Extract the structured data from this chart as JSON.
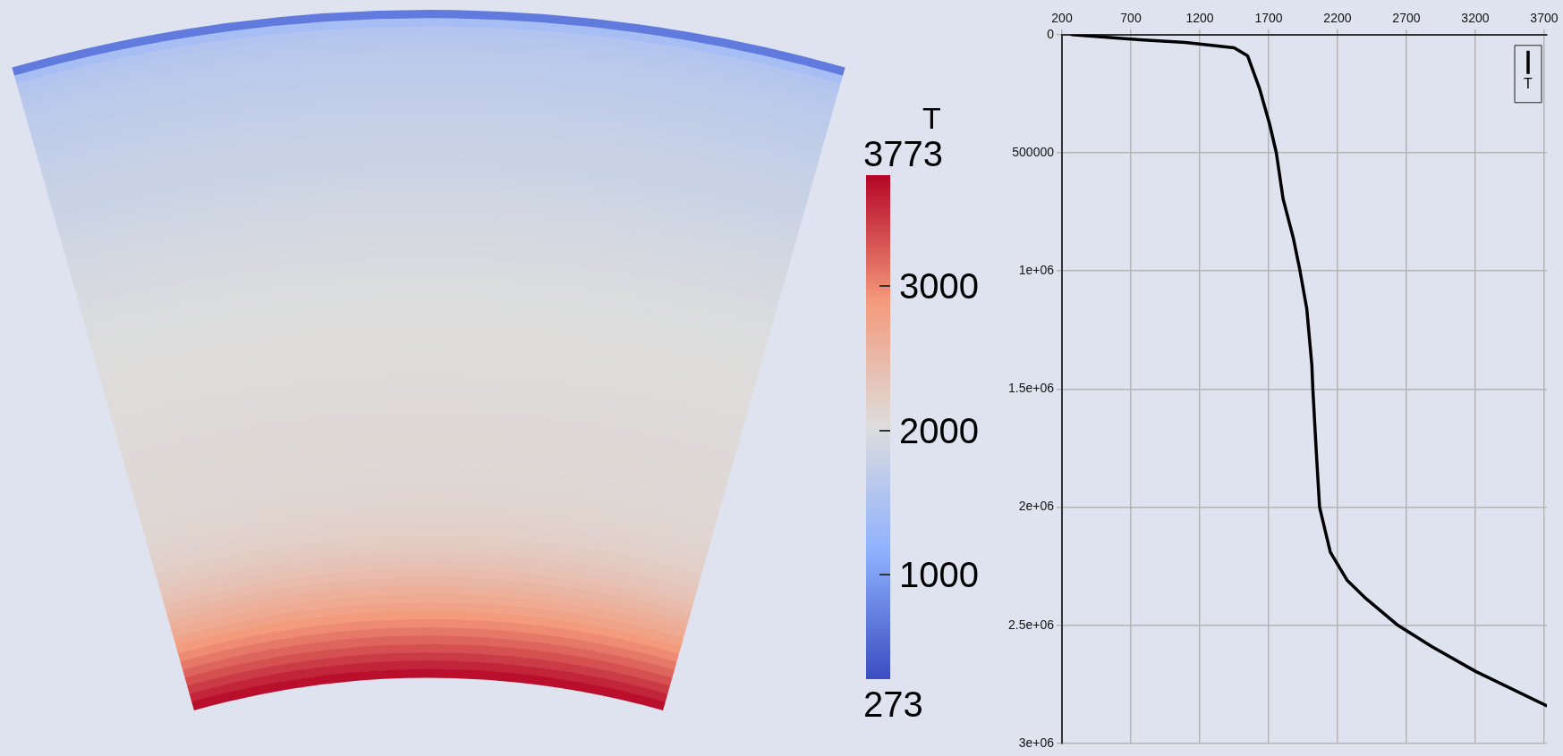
{
  "chart_data": [
    {
      "type": "other",
      "clabel": "T",
      "annotations": [
        "3773",
        "3000",
        "2000",
        "1000",
        "273"
      ]
    },
    {
      "type": "line",
      "grid": true,
      "legend": "top right",
      "xlim": [
        200,
        3720
      ],
      "xticks": [
        200,
        700,
        1200,
        1700,
        2200,
        2700,
        3200,
        3700
      ],
      "ylim": [
        3000000,
        0
      ],
      "yticks": [
        0,
        500000,
        {
          "value": 1000000,
          "label": "1e+06"
        },
        {
          "value": 1500000,
          "label": "1.5e+06"
        },
        {
          "value": 2000000,
          "label": "2e+06"
        },
        {
          "value": 2500000,
          "label": "2.5e+06"
        },
        {
          "value": 3000000,
          "label": "3e+06"
        }
      ],
      "series": [
        {
          "name": "T",
          "color": "#000000",
          "x": [
            273,
            678,
            1095,
            1450,
            1548,
            1634,
            1707,
            1756,
            1805,
            1879,
            1928,
            1977,
            2014,
            2021,
            2046,
            2070,
            2148,
            2271,
            2394,
            2639,
            2884,
            3203,
            3717
          ],
          "values": [
            0,
            18000,
            33000,
            56000,
            90000,
            228000,
            378000,
            500000,
            695000,
            860000,
            1000000,
            1160000,
            1400000,
            1500000,
            1765000,
            2000000,
            2190000,
            2310000,
            2380000,
            2500000,
            2590000,
            2695000,
            2840000
          ]
        }
      ]
    }
  ]
}
